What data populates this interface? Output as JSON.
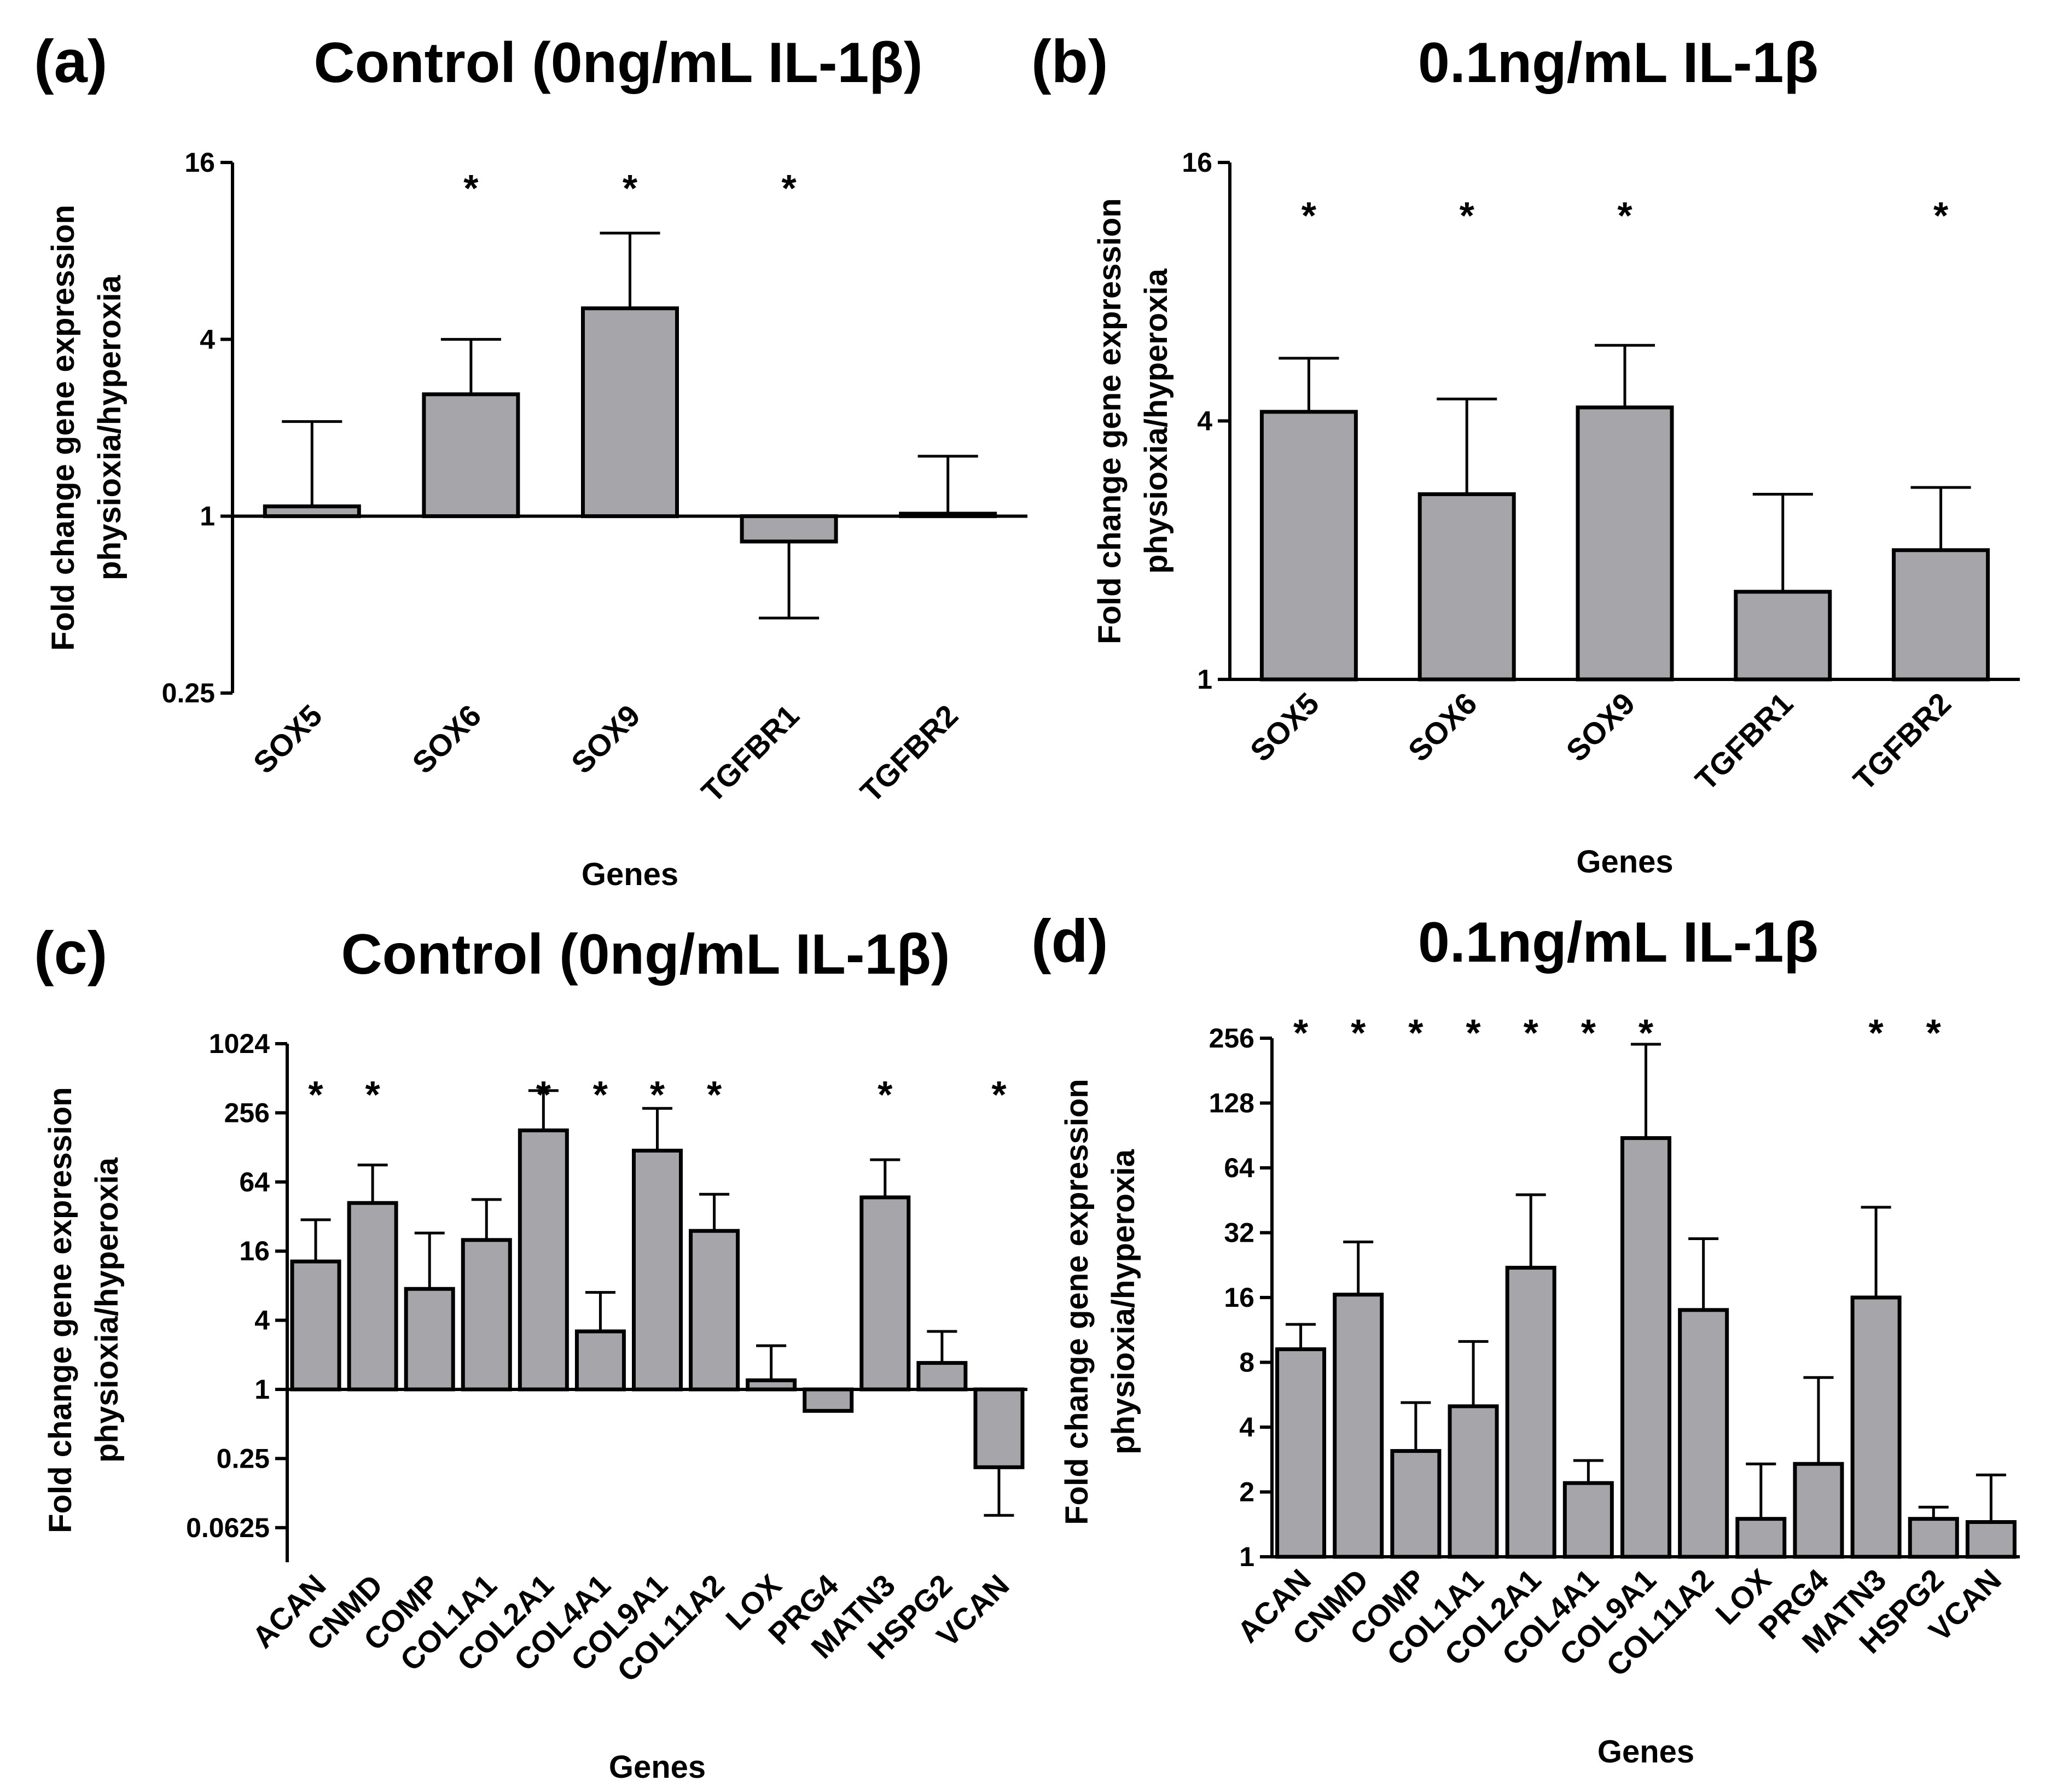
{
  "chart_data": [
    {
      "panel": "(a)",
      "type": "bar",
      "title": "Control (0ng/mL IL-1β)",
      "xlabel": "Genes",
      "ylabel": [
        "Fold change gene expression",
        "physioxia/hyperoxia"
      ],
      "yscale": "log2",
      "ylim": [
        0.25,
        16
      ],
      "yticks": [
        0.25,
        1,
        4,
        16
      ],
      "ytick_labels": [
        "0.25",
        "1",
        "4",
        "16"
      ],
      "baseline": 1,
      "categories": [
        "SOX5",
        "SOX6",
        "SOX9",
        "TGFBR1",
        "TGFBR2"
      ],
      "values": [
        1.08,
        2.6,
        5.1,
        0.82,
        1.02
      ],
      "error_upper": [
        2.1,
        4.0,
        9.2,
        null,
        1.6
      ],
      "error_lower": [
        null,
        null,
        null,
        0.45,
        null
      ],
      "significant": [
        false,
        true,
        true,
        true,
        false
      ],
      "marker": "*"
    },
    {
      "panel": "(b)",
      "type": "bar",
      "title": "0.1ng/mL IL-1β",
      "xlabel": "Genes",
      "ylabel": [
        "Fold change gene expression",
        "physioxia/hyperoxia"
      ],
      "yscale": "log2",
      "ylim": [
        1,
        16
      ],
      "yticks": [
        1,
        4,
        16
      ],
      "ytick_labels": [
        "1",
        "4",
        "16"
      ],
      "baseline": 1,
      "categories": [
        "SOX5",
        "SOX6",
        "SOX9",
        "TGFBR1",
        "TGFBR2"
      ],
      "values": [
        4.2,
        2.7,
        4.3,
        1.6,
        2.0
      ],
      "error_upper": [
        5.6,
        4.5,
        6.0,
        2.7,
        2.8
      ],
      "error_lower": [
        null,
        null,
        null,
        null,
        null
      ],
      "significant": [
        true,
        true,
        true,
        false,
        true
      ],
      "marker": "*"
    },
    {
      "panel": "(c)",
      "type": "bar",
      "title": "Control (0ng/mL IL-1β)",
      "xlabel": "Genes",
      "ylabel": [
        "Fold change gene expression",
        "physioxia/hyperoxia"
      ],
      "yscale": "log2",
      "ylim": [
        0.03125,
        1024
      ],
      "yticks": [
        0.0625,
        0.25,
        1,
        4,
        16,
        64,
        256,
        1024
      ],
      "ytick_labels": [
        "0.0625",
        "0.25",
        "1",
        "4",
        "16",
        "64",
        "256",
        "1024"
      ],
      "baseline": 1,
      "categories": [
        "ACAN",
        "CNMD",
        "COMP",
        "COL1A1",
        "COL2A1",
        "COL4A1",
        "COL9A1",
        "COL11A2",
        "LOX",
        "PRG4",
        "MATN3",
        "HSPG2",
        "VCAN"
      ],
      "values": [
        13,
        42,
        7.5,
        20,
        180,
        3.2,
        120,
        24,
        1.2,
        0.65,
        47,
        1.7,
        0.21
      ],
      "error_upper": [
        30,
        90,
        23,
        45,
        400,
        7,
        280,
        50,
        2.4,
        null,
        100,
        3.2,
        null
      ],
      "error_lower": [
        null,
        null,
        null,
        null,
        null,
        null,
        null,
        null,
        null,
        null,
        null,
        null,
        0.08
      ],
      "significant": [
        true,
        true,
        false,
        false,
        true,
        true,
        true,
        true,
        false,
        false,
        true,
        false,
        true
      ],
      "marker": "*"
    },
    {
      "panel": "(d)",
      "type": "bar",
      "title": "0.1ng/mL IL-1β",
      "xlabel": "Genes",
      "ylabel": [
        "Fold change gene expression",
        "physioxia/hyperoxia"
      ],
      "yscale": "log2",
      "ylim": [
        1,
        256
      ],
      "yticks": [
        1,
        2,
        4,
        8,
        16,
        32,
        64,
        128,
        256
      ],
      "ytick_labels": [
        "1",
        "2",
        "4",
        "8",
        "16",
        "32",
        "64",
        "128",
        "256"
      ],
      "baseline": 1,
      "categories": [
        "ACAN",
        "CNMD",
        "COMP",
        "COL1A1",
        "COL2A1",
        "COL4A1",
        "COL9A1",
        "COL11A2",
        "LOX",
        "PRG4",
        "MATN3",
        "HSPG2",
        "VCAN"
      ],
      "values": [
        9.2,
        16.5,
        3.1,
        5.0,
        22,
        2.2,
        88,
        14,
        1.5,
        2.7,
        16,
        1.5,
        1.45
      ],
      "error_upper": [
        12,
        29,
        5.2,
        10,
        48,
        2.8,
        240,
        30,
        2.7,
        6.8,
        42,
        1.7,
        2.4
      ],
      "error_lower": [
        null,
        null,
        null,
        null,
        null,
        null,
        null,
        null,
        null,
        null,
        null,
        null,
        null
      ],
      "significant": [
        true,
        true,
        true,
        true,
        true,
        true,
        true,
        false,
        false,
        false,
        true,
        true,
        false
      ],
      "marker": "*"
    }
  ]
}
